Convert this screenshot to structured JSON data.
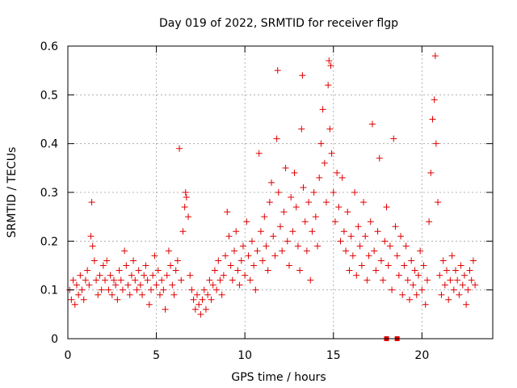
{
  "chart_data": {
    "type": "scatter",
    "title": "Day 019 of 2022, SRMTID for receiver flgp",
    "xlabel": "GPS time / hours",
    "ylabel": "SRMTID / TECUs",
    "xlim": [
      0,
      24
    ],
    "ylim": [
      0,
      0.6
    ],
    "x_ticks": [
      0,
      5,
      10,
      15,
      20
    ],
    "x_tick_labels": [
      "0",
      "5",
      "10",
      "15",
      "20"
    ],
    "y_ticks": [
      0,
      0.1,
      0.2,
      0.3,
      0.4,
      0.5,
      0.6
    ],
    "y_tick_labels": [
      "0",
      "0.1",
      "0.2",
      "0.3",
      "0.4",
      "0.5",
      "0.6"
    ],
    "grid": true,
    "marker": "plus",
    "color": "#e00000",
    "series": [
      {
        "name": "SRMTID",
        "points": [
          [
            0.1,
            0.1
          ],
          [
            0.2,
            0.08
          ],
          [
            0.3,
            0.12
          ],
          [
            0.4,
            0.07
          ],
          [
            0.5,
            0.11
          ],
          [
            0.6,
            0.09
          ],
          [
            0.7,
            0.13
          ],
          [
            0.8,
            0.1
          ],
          [
            0.9,
            0.08
          ],
          [
            1.0,
            0.12
          ],
          [
            1.1,
            0.14
          ],
          [
            1.2,
            0.11
          ],
          [
            1.3,
            0.21
          ],
          [
            1.35,
            0.28
          ],
          [
            1.4,
            0.19
          ],
          [
            1.5,
            0.16
          ],
          [
            1.6,
            0.12
          ],
          [
            1.7,
            0.09
          ],
          [
            1.8,
            0.13
          ],
          [
            1.9,
            0.1
          ],
          [
            2.0,
            0.15
          ],
          [
            2.1,
            0.12
          ],
          [
            2.2,
            0.16
          ],
          [
            2.3,
            0.1
          ],
          [
            2.4,
            0.13
          ],
          [
            2.5,
            0.09
          ],
          [
            2.6,
            0.12
          ],
          [
            2.7,
            0.11
          ],
          [
            2.8,
            0.08
          ],
          [
            2.9,
            0.14
          ],
          [
            3.0,
            0.12
          ],
          [
            3.1,
            0.1
          ],
          [
            3.2,
            0.18
          ],
          [
            3.3,
            0.15
          ],
          [
            3.4,
            0.11
          ],
          [
            3.5,
            0.09
          ],
          [
            3.6,
            0.13
          ],
          [
            3.7,
            0.16
          ],
          [
            3.8,
            0.12
          ],
          [
            3.9,
            0.1
          ],
          [
            4.0,
            0.14
          ],
          [
            4.1,
            0.11
          ],
          [
            4.2,
            0.09
          ],
          [
            4.3,
            0.13
          ],
          [
            4.4,
            0.15
          ],
          [
            4.5,
            0.12
          ],
          [
            4.6,
            0.07
          ],
          [
            4.7,
            0.1
          ],
          [
            4.8,
            0.13
          ],
          [
            4.9,
            0.17
          ],
          [
            5.0,
            0.11
          ],
          [
            5.1,
            0.14
          ],
          [
            5.2,
            0.09
          ],
          [
            5.3,
            0.12
          ],
          [
            5.4,
            0.1
          ],
          [
            5.5,
            0.06
          ],
          [
            5.6,
            0.13
          ],
          [
            5.7,
            0.18
          ],
          [
            5.8,
            0.15
          ],
          [
            5.9,
            0.11
          ],
          [
            6.0,
            0.09
          ],
          [
            6.1,
            0.14
          ],
          [
            6.2,
            0.16
          ],
          [
            6.3,
            0.39
          ],
          [
            6.4,
            0.12
          ],
          [
            6.5,
            0.22
          ],
          [
            6.6,
            0.27
          ],
          [
            6.65,
            0.3
          ],
          [
            6.7,
            0.29
          ],
          [
            6.8,
            0.25
          ],
          [
            6.9,
            0.13
          ],
          [
            7.0,
            0.1
          ],
          [
            7.1,
            0.08
          ],
          [
            7.2,
            0.06
          ],
          [
            7.3,
            0.09
          ],
          [
            7.4,
            0.07
          ],
          [
            7.5,
            0.05
          ],
          [
            7.6,
            0.08
          ],
          [
            7.7,
            0.1
          ],
          [
            7.8,
            0.06
          ],
          [
            7.9,
            0.09
          ],
          [
            8.0,
            0.12
          ],
          [
            8.1,
            0.08
          ],
          [
            8.2,
            0.11
          ],
          [
            8.3,
            0.14
          ],
          [
            8.4,
            0.1
          ],
          [
            8.5,
            0.16
          ],
          [
            8.6,
            0.12
          ],
          [
            8.7,
            0.09
          ],
          [
            8.8,
            0.13
          ],
          [
            8.9,
            0.17
          ],
          [
            9.0,
            0.26
          ],
          [
            9.1,
            0.21
          ],
          [
            9.2,
            0.15
          ],
          [
            9.3,
            0.12
          ],
          [
            9.4,
            0.18
          ],
          [
            9.5,
            0.22
          ],
          [
            9.6,
            0.14
          ],
          [
            9.7,
            0.11
          ],
          [
            9.8,
            0.16
          ],
          [
            9.9,
            0.19
          ],
          [
            10.0,
            0.13
          ],
          [
            10.1,
            0.24
          ],
          [
            10.2,
            0.17
          ],
          [
            10.3,
            0.12
          ],
          [
            10.4,
            0.2
          ],
          [
            10.5,
            0.15
          ],
          [
            10.6,
            0.1
          ],
          [
            10.7,
            0.18
          ],
          [
            10.8,
            0.38
          ],
          [
            10.9,
            0.22
          ],
          [
            11.0,
            0.16
          ],
          [
            11.1,
            0.25
          ],
          [
            11.2,
            0.19
          ],
          [
            11.3,
            0.14
          ],
          [
            11.4,
            0.28
          ],
          [
            11.5,
            0.32
          ],
          [
            11.6,
            0.21
          ],
          [
            11.7,
            0.17
          ],
          [
            11.8,
            0.41
          ],
          [
            11.85,
            0.55
          ],
          [
            11.9,
            0.3
          ],
          [
            12.0,
            0.23
          ],
          [
            12.1,
            0.18
          ],
          [
            12.2,
            0.26
          ],
          [
            12.3,
            0.35
          ],
          [
            12.4,
            0.2
          ],
          [
            12.5,
            0.15
          ],
          [
            12.6,
            0.29
          ],
          [
            12.7,
            0.22
          ],
          [
            12.8,
            0.34
          ],
          [
            12.9,
            0.27
          ],
          [
            13.0,
            0.19
          ],
          [
            13.1,
            0.14
          ],
          [
            13.2,
            0.43
          ],
          [
            13.25,
            0.54
          ],
          [
            13.3,
            0.31
          ],
          [
            13.4,
            0.24
          ],
          [
            13.5,
            0.18
          ],
          [
            13.6,
            0.28
          ],
          [
            13.7,
            0.12
          ],
          [
            13.8,
            0.22
          ],
          [
            13.9,
            0.3
          ],
          [
            14.0,
            0.25
          ],
          [
            14.1,
            0.19
          ],
          [
            14.2,
            0.33
          ],
          [
            14.3,
            0.4
          ],
          [
            14.4,
            0.47
          ],
          [
            14.5,
            0.36
          ],
          [
            14.6,
            0.28
          ],
          [
            14.7,
            0.52
          ],
          [
            14.75,
            0.57
          ],
          [
            14.8,
            0.43
          ],
          [
            14.85,
            0.56
          ],
          [
            14.9,
            0.38
          ],
          [
            15.0,
            0.3
          ],
          [
            15.1,
            0.24
          ],
          [
            15.2,
            0.34
          ],
          [
            15.3,
            0.27
          ],
          [
            15.4,
            0.2
          ],
          [
            15.5,
            0.33
          ],
          [
            15.6,
            0.22
          ],
          [
            15.7,
            0.18
          ],
          [
            15.8,
            0.26
          ],
          [
            15.9,
            0.14
          ],
          [
            16.0,
            0.21
          ],
          [
            16.1,
            0.17
          ],
          [
            16.2,
            0.3
          ],
          [
            16.3,
            0.13
          ],
          [
            16.4,
            0.23
          ],
          [
            16.5,
            0.19
          ],
          [
            16.6,
            0.15
          ],
          [
            16.7,
            0.28
          ],
          [
            16.8,
            0.21
          ],
          [
            16.9,
            0.12
          ],
          [
            17.0,
            0.17
          ],
          [
            17.1,
            0.24
          ],
          [
            17.2,
            0.44
          ],
          [
            17.3,
            0.18
          ],
          [
            17.4,
            0.14
          ],
          [
            17.5,
            0.22
          ],
          [
            17.6,
            0.37
          ],
          [
            17.7,
            0.16
          ],
          [
            17.8,
            0.12
          ],
          [
            17.9,
            0.2
          ],
          [
            18.0,
            0.27
          ],
          [
            18.1,
            0.15
          ],
          [
            18.2,
            0.19
          ],
          [
            18.3,
            0.1
          ],
          [
            18.4,
            0.41
          ],
          [
            18.5,
            0.23
          ],
          [
            18.6,
            0.17
          ],
          [
            18.7,
            0.13
          ],
          [
            18.8,
            0.21
          ],
          [
            18.9,
            0.09
          ],
          [
            19.0,
            0.15
          ],
          [
            19.1,
            0.19
          ],
          [
            19.2,
            0.12
          ],
          [
            19.3,
            0.08
          ],
          [
            19.4,
            0.16
          ],
          [
            19.5,
            0.11
          ],
          [
            19.6,
            0.14
          ],
          [
            19.7,
            0.09
          ],
          [
            19.8,
            0.13
          ],
          [
            19.9,
            0.18
          ],
          [
            20.0,
            0.1
          ],
          [
            20.1,
            0.15
          ],
          [
            20.2,
            0.07
          ],
          [
            20.3,
            0.12
          ],
          [
            20.4,
            0.24
          ],
          [
            20.5,
            0.34
          ],
          [
            20.6,
            0.45
          ],
          [
            20.7,
            0.49
          ],
          [
            20.75,
            0.58
          ],
          [
            20.8,
            0.4
          ],
          [
            20.9,
            0.28
          ],
          [
            21.0,
            0.13
          ],
          [
            21.1,
            0.09
          ],
          [
            21.2,
            0.16
          ],
          [
            21.3,
            0.11
          ],
          [
            21.4,
            0.14
          ],
          [
            21.5,
            0.08
          ],
          [
            21.6,
            0.12
          ],
          [
            21.7,
            0.17
          ],
          [
            21.8,
            0.1
          ],
          [
            21.9,
            0.14
          ],
          [
            22.0,
            0.12
          ],
          [
            22.1,
            0.09
          ],
          [
            22.2,
            0.15
          ],
          [
            22.3,
            0.11
          ],
          [
            22.4,
            0.13
          ],
          [
            22.5,
            0.07
          ],
          [
            22.6,
            0.1
          ],
          [
            22.7,
            0.14
          ],
          [
            22.8,
            0.12
          ],
          [
            22.9,
            0.16
          ],
          [
            23.0,
            0.11
          ]
        ]
      }
    ],
    "baseline_markers": [
      18.0,
      18.6
    ]
  }
}
